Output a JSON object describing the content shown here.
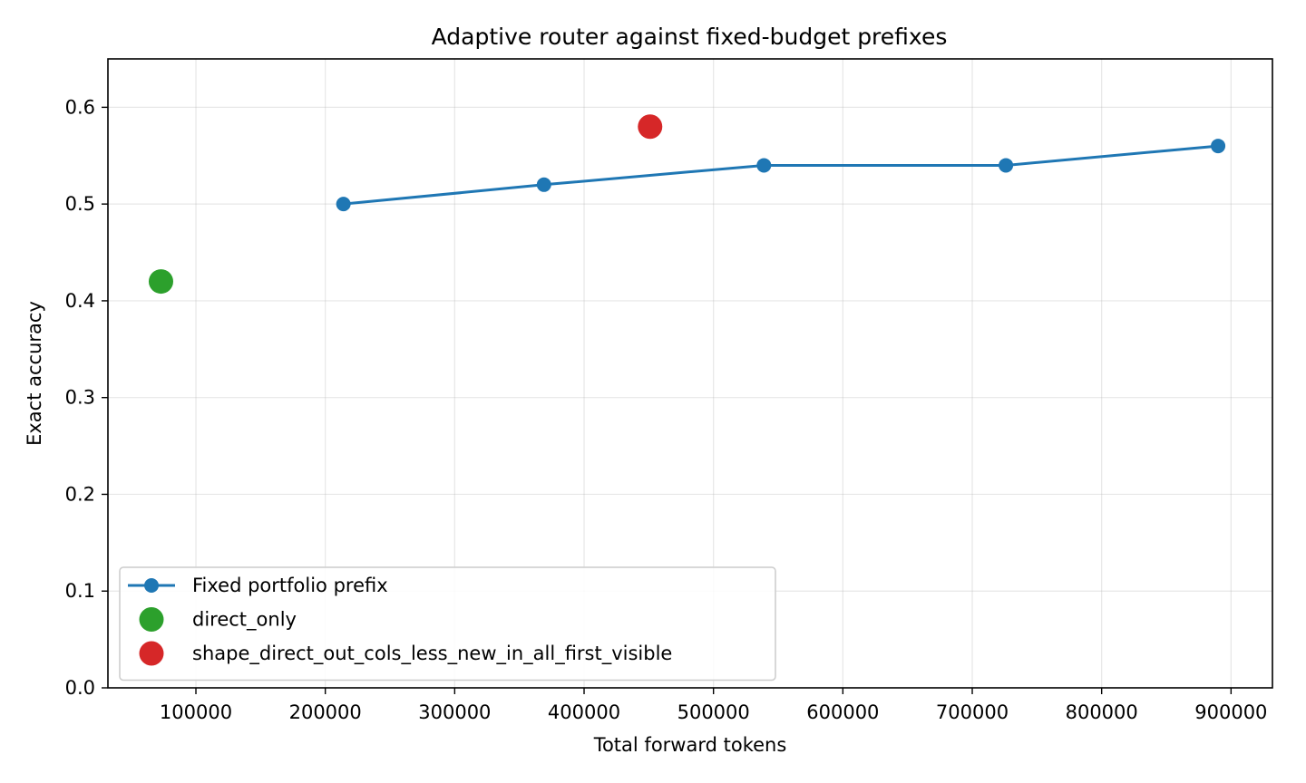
{
  "chart_data": {
    "type": "line",
    "title": "Adaptive router against fixed-budget prefixes",
    "xlabel": "Total forward tokens",
    "ylabel": "Exact accuracy",
    "xlim": [
      32000,
      932000
    ],
    "ylim": [
      0.0,
      0.65
    ],
    "xticks": [
      100000,
      200000,
      300000,
      400000,
      500000,
      600000,
      700000,
      800000,
      900000
    ],
    "yticks": [
      0.0,
      0.1,
      0.2,
      0.3,
      0.4,
      0.5,
      0.6
    ],
    "grid": true,
    "legend_position": "lower-left",
    "series": [
      {
        "name": "Fixed portfolio prefix",
        "kind": "line-markers",
        "color": "#1f77b4",
        "x": [
          214000,
          369000,
          539000,
          726000,
          890000
        ],
        "y": [
          0.5,
          0.52,
          0.54,
          0.54,
          0.56
        ]
      },
      {
        "name": "direct_only",
        "kind": "scatter",
        "color": "#2ca02c",
        "x": [
          73000
        ],
        "y": [
          0.42
        ]
      },
      {
        "name": "shape_direct_out_cols_less_new_in_all_first_visible",
        "kind": "scatter",
        "color": "#d62728",
        "x": [
          451000
        ],
        "y": [
          0.58
        ]
      }
    ]
  }
}
